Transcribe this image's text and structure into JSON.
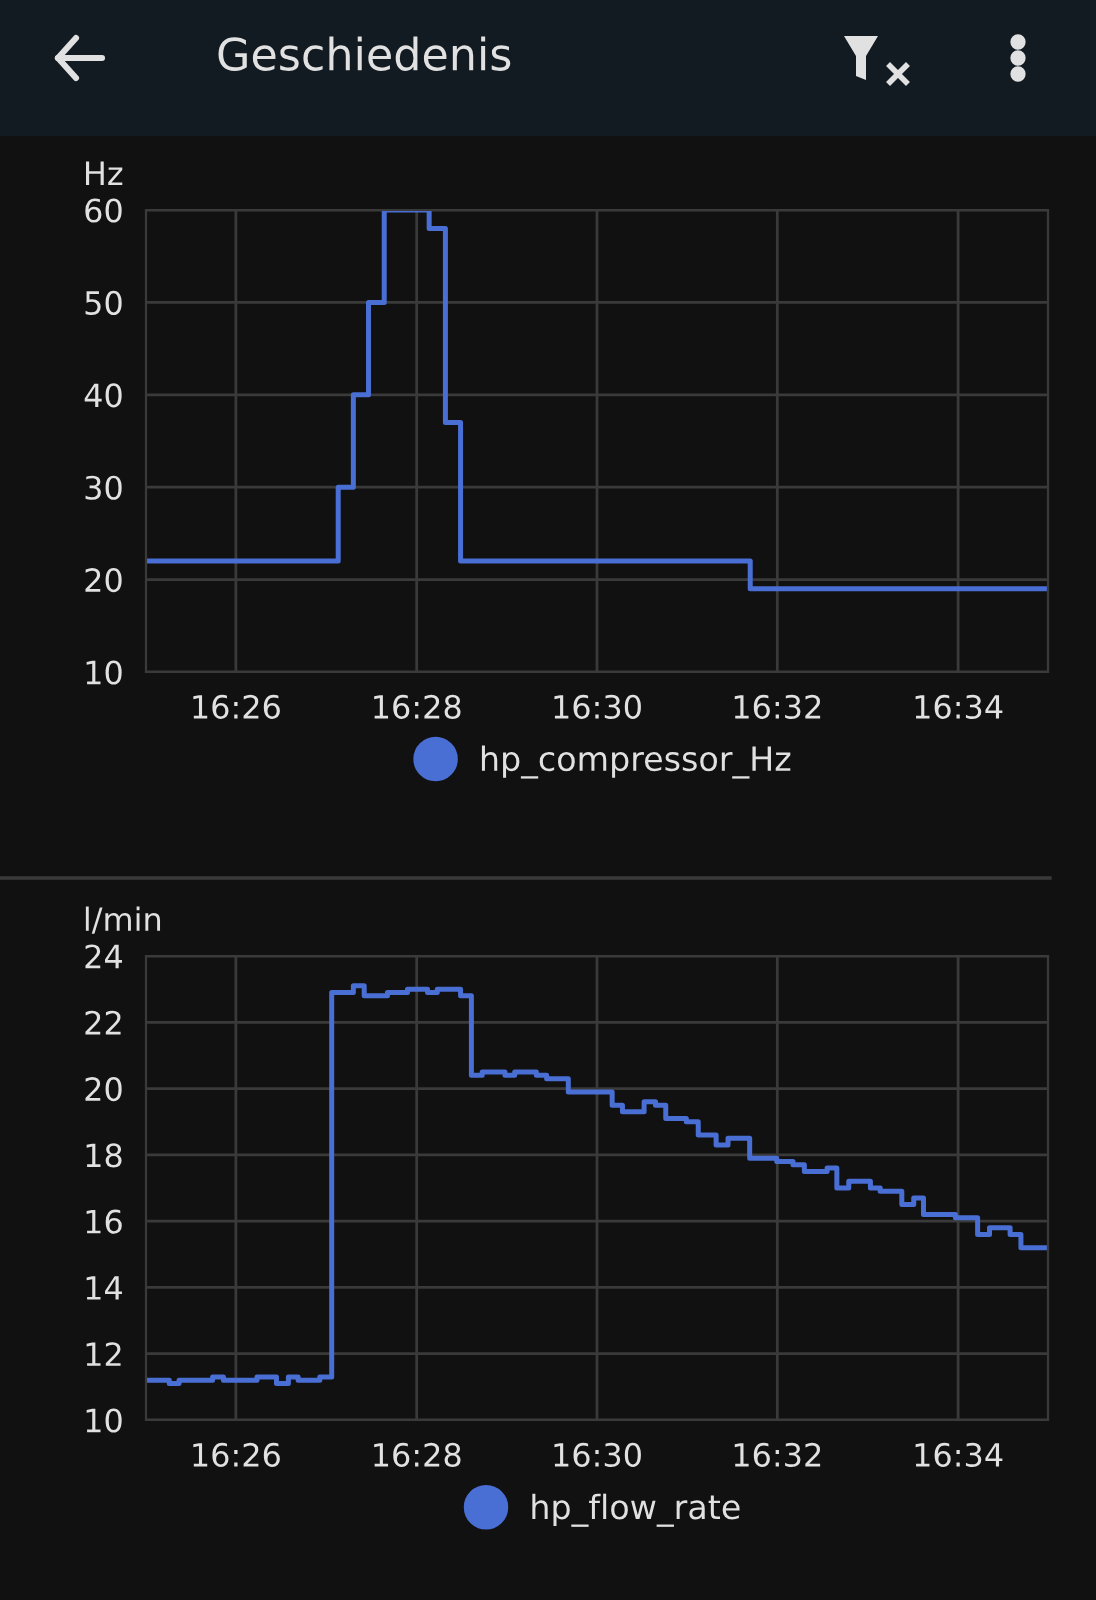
{
  "chart_data": [
    {
      "type": "step",
      "title": "Geschiedenis",
      "ylabel": "Hz",
      "series": [
        {
          "name": "hp_compressor_Hz",
          "color": "#4a6fd4",
          "x": [
            16.4167,
            16.4522,
            16.455,
            16.4578,
            16.4607,
            16.469,
            16.472,
            16.4748,
            16.5283,
            16.5833
          ],
          "values": [
            22,
            30,
            40,
            50,
            60,
            58,
            37,
            22,
            19,
            19
          ]
        }
      ],
      "xlim": [
        16.4167,
        16.5833
      ],
      "xticks": [
        {
          "value": 16.4333,
          "label": "16:26"
        },
        {
          "value": 16.4667,
          "label": "16:28"
        },
        {
          "value": 16.5,
          "label": "16:30"
        },
        {
          "value": 16.5333,
          "label": "16:32"
        },
        {
          "value": 16.5667,
          "label": "16:34"
        }
      ],
      "ylim": [
        10,
        60
      ],
      "yticks": [
        10,
        20,
        30,
        40,
        50,
        60
      ],
      "grid": true,
      "legend": "bottom",
      "marker": "none",
      "line_style": "solid"
    },
    {
      "type": "step",
      "ylabel": "l/min",
      "series": [
        {
          "name": "hp_flow_rate",
          "color": "#4a6fd4",
          "x": [
            16.4167,
            16.421,
            16.4228,
            16.429,
            16.431,
            16.4372,
            16.4408,
            16.443,
            16.4448,
            16.4488,
            16.451,
            16.455,
            16.457,
            16.4613,
            16.465,
            16.4687,
            16.4705,
            16.4748,
            16.4768,
            16.4788,
            16.483,
            16.4848,
            16.4888,
            16.4907,
            16.4947,
            16.5028,
            16.5047,
            16.5087,
            16.5108,
            16.5127,
            16.5165,
            16.5187,
            16.522,
            16.5242,
            16.5282,
            16.5332,
            16.5362,
            16.5383,
            16.5425,
            16.5443,
            16.5465,
            16.5505,
            16.5523,
            16.5563,
            16.5585,
            16.5603,
            16.5662,
            16.5703,
            16.5725,
            16.5763,
            16.5783,
            16.5833
          ],
          "values": [
            11.2,
            11.1,
            11.2,
            11.3,
            11.2,
            11.3,
            11.1,
            11.3,
            11.2,
            11.3,
            22.9,
            23.1,
            22.8,
            22.9,
            23.0,
            22.9,
            23.0,
            22.8,
            20.4,
            20.5,
            20.4,
            20.5,
            20.4,
            20.3,
            19.9,
            19.5,
            19.3,
            19.6,
            19.5,
            19.1,
            19.0,
            18.6,
            18.3,
            18.5,
            17.9,
            17.8,
            17.7,
            17.5,
            17.6,
            17.0,
            17.2,
            17.0,
            16.9,
            16.5,
            16.7,
            16.2,
            16.1,
            15.6,
            15.8,
            15.6,
            15.2,
            15.2
          ]
        }
      ],
      "xlim": [
        16.4167,
        16.5833
      ],
      "xticks": [
        {
          "value": 16.4333,
          "label": "16:26"
        },
        {
          "value": 16.4667,
          "label": "16:28"
        },
        {
          "value": 16.5,
          "label": "16:30"
        },
        {
          "value": 16.5333,
          "label": "16:32"
        },
        {
          "value": 16.5667,
          "label": "16:34"
        }
      ],
      "ylim": [
        10,
        24
      ],
      "yticks": [
        10,
        12,
        14,
        16,
        18,
        20,
        22,
        24
      ],
      "grid": true,
      "legend": "bottom",
      "marker": "none",
      "line_style": "solid"
    }
  ]
}
